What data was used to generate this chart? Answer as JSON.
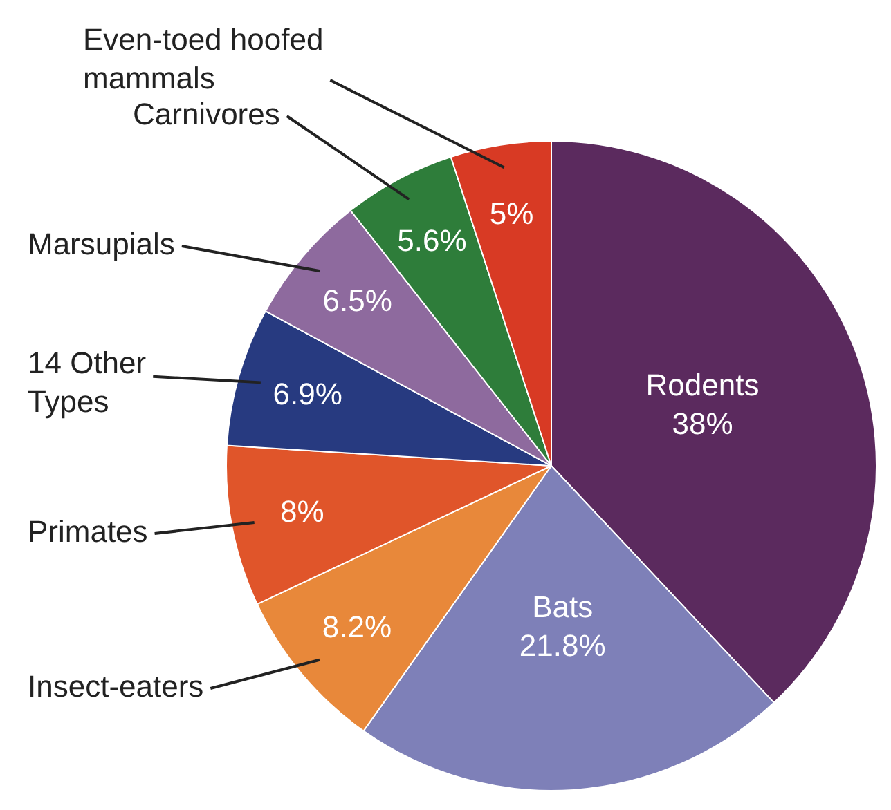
{
  "chart_data": {
    "type": "pie",
    "categories": [
      "Rodents",
      "Bats",
      "Insect-eaters",
      "Primates",
      "14 Other Types",
      "Marsupials",
      "Carnivores",
      "Even-toed hoofed mammals"
    ],
    "values": [
      38,
      21.8,
      8.2,
      8,
      6.9,
      6.5,
      5.6,
      5
    ],
    "value_labels": [
      "38%",
      "21.8%",
      "8.2%",
      "8%",
      "6.9%",
      "6.5%",
      "5.6%",
      "5%"
    ],
    "colors": [
      "#5b2a5e",
      "#7e80b8",
      "#e8883a",
      "#e0552a",
      "#273a80",
      "#8e6a9e",
      "#2e7d3a",
      "#d83a24"
    ],
    "legend": false
  }
}
